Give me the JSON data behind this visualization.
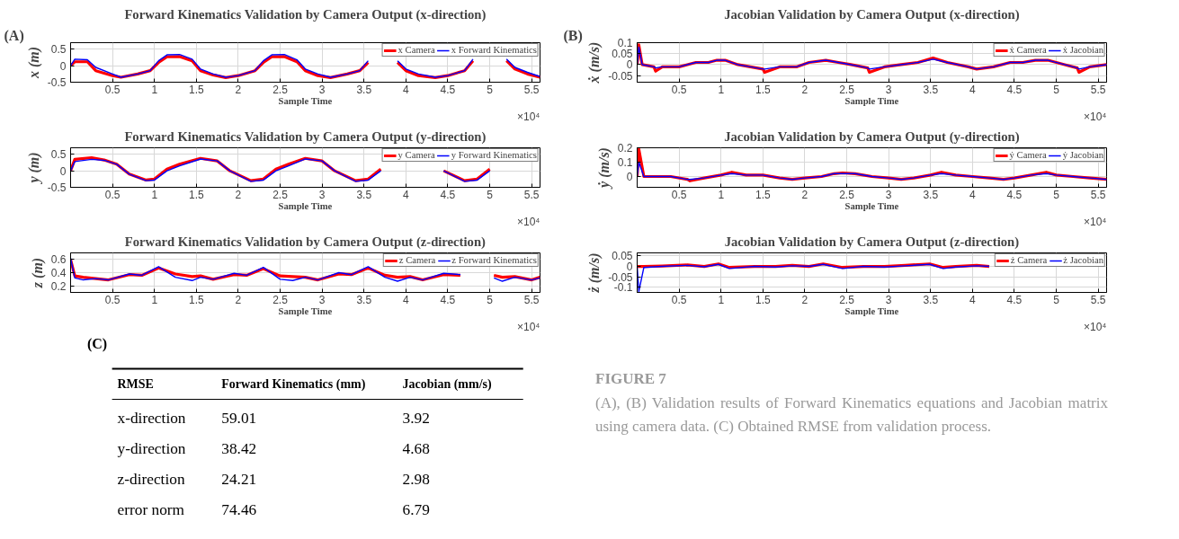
{
  "chart_data": [
    {
      "type": "line",
      "title": "Forward Kinematics Validation by Camera Output (x-direction)",
      "xlabel": "Sample Time",
      "ylabel": "x (m)",
      "xlim": [
        0,
        5.6
      ],
      "ylim": [
        -0.5,
        0.7
      ],
      "xticks": [
        0.5,
        1,
        1.5,
        2,
        2.5,
        3,
        3.5,
        4,
        4.5,
        5,
        5.5
      ],
      "yticks": [
        -0.5,
        0,
        0.5
      ],
      "grid": true,
      "legend": "top right",
      "annotations": [
        "×10⁴",
        "(A)"
      ],
      "x": [
        0,
        0.05,
        0.2,
        0.3,
        0.5,
        0.6,
        0.8,
        0.95,
        1.05,
        1.15,
        1.3,
        1.45,
        1.55,
        1.7,
        1.85,
        2,
        2.2,
        2.3,
        2.4,
        2.55,
        2.7,
        2.8,
        2.95,
        3.1,
        3.3,
        3.45,
        3.55,
        3.7,
        3.9,
        4,
        4.15,
        4.35,
        4.5,
        4.7,
        4.8,
        4.9,
        5.1,
        5.2,
        5.3,
        5.45,
        5.6
      ],
      "series": [
        {
          "name": "x Camera",
          "color": "#ff0000",
          "values": [
            0,
            0.12,
            0.12,
            -0.15,
            -0.3,
            -0.35,
            -0.25,
            -0.15,
            0.1,
            0.27,
            0.28,
            0.15,
            -0.15,
            -0.28,
            -0.36,
            -0.3,
            -0.15,
            0.1,
            0.27,
            0.28,
            0.12,
            -0.15,
            -0.3,
            -0.36,
            -0.25,
            -0.15,
            0.1,
            null,
            0.1,
            -0.15,
            -0.3,
            -0.36,
            -0.3,
            -0.15,
            0.15,
            null,
            null,
            0.15,
            -0.1,
            -0.25,
            -0.35
          ]
        },
        {
          "name": "x Forward Kinematics",
          "color": "#0000ff",
          "values": [
            0,
            0.2,
            0.18,
            -0.05,
            -0.25,
            -0.35,
            -0.25,
            -0.15,
            0.15,
            0.33,
            0.34,
            0.2,
            -0.1,
            -0.25,
            -0.35,
            -0.3,
            -0.15,
            0.15,
            0.33,
            0.34,
            0.18,
            -0.1,
            -0.25,
            -0.35,
            -0.25,
            -0.15,
            0.15,
            null,
            0.15,
            -0.1,
            -0.25,
            -0.35,
            -0.3,
            -0.15,
            0.2,
            null,
            null,
            0.2,
            -0.05,
            -0.2,
            -0.33
          ]
        }
      ]
    },
    {
      "type": "line",
      "title": "Forward Kinematics Validation by Camera Output (y-direction)",
      "xlabel": "Sample Time",
      "ylabel": "y (m)",
      "xlim": [
        0,
        5.6
      ],
      "ylim": [
        -0.5,
        0.7
      ],
      "xticks": [
        0.5,
        1,
        1.5,
        2,
        2.5,
        3,
        3.5,
        4,
        4.5,
        5,
        5.5
      ],
      "yticks": [
        -0.5,
        0,
        0.5
      ],
      "grid": true,
      "legend": "top right",
      "annotations": [
        "×10⁴"
      ],
      "x": [
        0,
        0.05,
        0.25,
        0.4,
        0.55,
        0.7,
        0.9,
        1,
        1.15,
        1.3,
        1.55,
        1.75,
        1.9,
        2.15,
        2.3,
        2.45,
        2.6,
        2.8,
        3,
        3.15,
        3.4,
        3.55,
        3.7,
        3.85,
        4.1,
        4.3,
        4.45,
        4.7,
        4.85,
        5
      ],
      "series": [
        {
          "name": "y Camera",
          "color": "#ff0000",
          "values": [
            0,
            0.35,
            0.4,
            0.33,
            0.2,
            -0.1,
            -0.28,
            -0.25,
            0.05,
            0.2,
            0.38,
            0.3,
            0.0,
            -0.3,
            -0.25,
            0.05,
            0.2,
            0.38,
            0.3,
            0.0,
            -0.3,
            -0.25,
            0.05,
            null,
            null,
            null,
            0.0,
            -0.3,
            -0.25,
            0.05
          ]
        },
        {
          "name": "y Forward Kinematics",
          "color": "#0000ff",
          "values": [
            0,
            0.28,
            0.35,
            0.32,
            0.2,
            -0.1,
            -0.3,
            -0.28,
            0.0,
            0.15,
            0.36,
            0.3,
            0.0,
            -0.32,
            -0.28,
            0.0,
            0.15,
            0.36,
            0.3,
            0.0,
            -0.32,
            -0.28,
            0.0,
            null,
            null,
            null,
            0.0,
            -0.32,
            -0.28,
            0.0
          ]
        }
      ]
    },
    {
      "type": "line",
      "title": "Forward Kinematics Validation by Camera Output (z-direction)",
      "xlabel": "Sample Time",
      "ylabel": "z (m)",
      "xlim": [
        0,
        5.6
      ],
      "ylim": [
        0.1,
        0.7
      ],
      "xticks": [
        0.5,
        1,
        1.5,
        2,
        2.5,
        3,
        3.5,
        4,
        4.5,
        5,
        5.5
      ],
      "yticks": [
        0.2,
        0.4,
        0.6
      ],
      "grid": true,
      "legend": "top right",
      "annotations": [
        "×10⁴"
      ],
      "x": [
        0,
        0.05,
        0.15,
        0.3,
        0.45,
        0.7,
        0.85,
        1.05,
        1.25,
        1.45,
        1.55,
        1.7,
        1.95,
        2.1,
        2.3,
        2.5,
        2.65,
        2.8,
        2.95,
        3.2,
        3.35,
        3.55,
        3.75,
        3.9,
        4.05,
        4.2,
        4.45,
        4.65,
        4.75,
        4.9,
        5.05,
        5.15,
        5.3,
        5.5,
        5.6
      ],
      "series": [
        {
          "name": "z Camera",
          "color": "#ff0000",
          "values": [
            0.6,
            0.35,
            0.33,
            0.31,
            0.29,
            0.37,
            0.36,
            0.47,
            0.38,
            0.34,
            0.35,
            0.3,
            0.37,
            0.36,
            0.46,
            0.35,
            0.34,
            0.33,
            0.29,
            0.38,
            0.37,
            0.47,
            0.36,
            0.33,
            0.34,
            0.29,
            0.37,
            0.36,
            null,
            null,
            0.36,
            0.33,
            0.34,
            0.29,
            0.33
          ]
        },
        {
          "name": "z Forward Kinematics",
          "color": "#0000ff",
          "values": [
            0.62,
            0.32,
            0.29,
            0.31,
            0.29,
            0.38,
            0.36,
            0.49,
            0.33,
            0.28,
            0.33,
            0.3,
            0.39,
            0.36,
            0.48,
            0.3,
            0.28,
            0.33,
            0.29,
            0.4,
            0.37,
            0.49,
            0.33,
            0.27,
            0.33,
            0.29,
            0.39,
            0.37,
            null,
            null,
            0.32,
            0.27,
            0.33,
            0.29,
            0.32
          ]
        }
      ]
    },
    {
      "type": "line",
      "title": "Jacobian Validation by Camera Output (x-direction)",
      "xlabel": "Sample Time",
      "ylabel": "ẋ (m/s)",
      "xlim": [
        0,
        5.6
      ],
      "ylim": [
        -0.08,
        0.1
      ],
      "xticks": [
        0.5,
        1,
        1.5,
        2,
        2.5,
        3,
        3.5,
        4,
        4.5,
        5,
        5.5
      ],
      "yticks": [
        -0.05,
        0,
        0.05,
        0.1
      ],
      "grid": true,
      "legend": "top right",
      "annotations": [
        "×10⁴",
        "(B)"
      ],
      "x": [
        0,
        0.02,
        0.06,
        0.2,
        0.22,
        0.3,
        0.5,
        0.7,
        0.85,
        0.95,
        1.05,
        1.2,
        1.35,
        1.5,
        1.52,
        1.7,
        1.9,
        2.05,
        2.25,
        2.4,
        2.55,
        2.75,
        2.77,
        2.95,
        3.15,
        3.35,
        3.53,
        3.7,
        3.95,
        4.05,
        4.25,
        4.45,
        4.6,
        4.75,
        4.9,
        5.1,
        5.25,
        5.27,
        5.4,
        5.6
      ],
      "series": [
        {
          "name": "ẋ Camera",
          "color": "#ff0000",
          "values": [
            0,
            0.09,
            0,
            -0.01,
            -0.03,
            -0.01,
            -0.01,
            0.01,
            0.01,
            0.02,
            0.02,
            0.0,
            -0.01,
            -0.02,
            -0.035,
            -0.01,
            -0.01,
            0.01,
            0.02,
            0.01,
            0.0,
            -0.015,
            -0.035,
            -0.01,
            0.0,
            0.01,
            0.03,
            0.01,
            -0.01,
            -0.02,
            -0.01,
            0.01,
            0.01,
            0.02,
            0.02,
            0.0,
            -0.015,
            -0.035,
            -0.01,
            0.0
          ]
        },
        {
          "name": "ẋ Jacobian",
          "color": "#0000ff",
          "values": [
            0,
            0.08,
            0,
            -0.01,
            -0.015,
            -0.01,
            -0.01,
            0.01,
            0.01,
            0.02,
            0.02,
            0.0,
            -0.01,
            -0.02,
            -0.02,
            -0.01,
            -0.01,
            0.01,
            0.02,
            0.01,
            0.0,
            -0.015,
            -0.02,
            -0.01,
            0.0,
            0.01,
            0.025,
            0.01,
            -0.01,
            -0.02,
            -0.01,
            0.01,
            0.01,
            0.02,
            0.02,
            0.0,
            -0.015,
            -0.02,
            -0.01,
            0.0
          ]
        }
      ]
    },
    {
      "type": "line",
      "title": "Jacobian Validation by Camera Output (y-direction)",
      "xlabel": "Sample Time",
      "ylabel": "ẏ (m/s)",
      "xlim": [
        0,
        5.6
      ],
      "ylim": [
        -0.075,
        0.2
      ],
      "xticks": [
        0.5,
        1,
        1.5,
        2,
        2.5,
        3,
        3.5,
        4,
        4.5,
        5,
        5.5
      ],
      "yticks": [
        0,
        0.1,
        0.2
      ],
      "grid": true,
      "legend": "top right",
      "annotations": [
        "×10⁴"
      ],
      "x": [
        0,
        0.02,
        0.08,
        0.2,
        0.4,
        0.6,
        0.63,
        0.8,
        1,
        1.13,
        1.3,
        1.5,
        1.7,
        1.85,
        2,
        2.2,
        2.35,
        2.45,
        2.6,
        2.8,
        3,
        3.15,
        3.3,
        3.5,
        3.63,
        3.8,
        4,
        4.2,
        4.37,
        4.5,
        4.7,
        4.88,
        5,
        5.2,
        5.4,
        5.6
      ],
      "series": [
        {
          "name": "ẏ Camera",
          "color": "#ff0000",
          "values": [
            0,
            0.19,
            0,
            0,
            0,
            -0.02,
            -0.03,
            -0.01,
            0.01,
            0.03,
            0.01,
            0.01,
            -0.01,
            -0.02,
            -0.01,
            0.0,
            0.02,
            0.025,
            0.02,
            0.0,
            -0.01,
            -0.02,
            -0.01,
            0.01,
            0.03,
            0.01,
            0.0,
            -0.01,
            -0.02,
            -0.01,
            0.01,
            0.03,
            0.01,
            0.0,
            -0.01,
            -0.02
          ]
        },
        {
          "name": "ẏ Jacobian",
          "color": "#0000ff",
          "values": [
            0,
            0.1,
            0,
            0,
            0,
            -0.02,
            -0.02,
            -0.01,
            0.01,
            0.02,
            0.01,
            0.01,
            -0.01,
            -0.02,
            -0.01,
            0.0,
            0.02,
            0.02,
            0.02,
            0.0,
            -0.01,
            -0.02,
            -0.01,
            0.01,
            0.02,
            0.01,
            0.0,
            -0.01,
            -0.02,
            -0.01,
            0.01,
            0.02,
            0.01,
            0.0,
            -0.01,
            -0.02
          ]
        }
      ]
    },
    {
      "type": "line",
      "title": "Jacobian Validation by Camera Output (z-direction)",
      "xlabel": "Sample Time",
      "ylabel": "ż (m/s)",
      "xlim": [
        0,
        5.6
      ],
      "ylim": [
        -0.125,
        0.065
      ],
      "xticks": [
        0.5,
        1,
        1.5,
        2,
        2.5,
        3,
        3.5,
        4,
        4.5,
        5,
        5.5
      ],
      "yticks": [
        -0.1,
        -0.05,
        0,
        0.05
      ],
      "grid": true,
      "legend": "top right",
      "annotations": [
        "×10⁴"
      ],
      "x": [
        0,
        0.02,
        0.08,
        0.3,
        0.6,
        0.8,
        0.97,
        1.1,
        1.4,
        1.65,
        1.85,
        2.05,
        2.22,
        2.45,
        2.7,
        2.95,
        3.2,
        3.49,
        3.65,
        3.8,
        4.05,
        4.2
      ],
      "series": [
        {
          "name": "ż Camera",
          "color": "#ff0000",
          "values": [
            0,
            0.0,
            0.0,
            0.002,
            0.007,
            0.0,
            0.012,
            -0.005,
            0.0,
            0.0,
            0.005,
            0.0,
            0.012,
            -0.005,
            0.0,
            0.0,
            0.005,
            0.012,
            -0.005,
            0.0,
            0.005,
            0.0
          ]
        },
        {
          "name": "ż Jacobian",
          "color": "#0000ff",
          "values": [
            0,
            -0.12,
            -0.005,
            0.0,
            0.005,
            -0.002,
            0.01,
            -0.01,
            0.0,
            -0.003,
            0.003,
            0.0,
            0.01,
            -0.01,
            0.0,
            -0.003,
            0.003,
            0.01,
            -0.01,
            -0.003,
            0.003,
            0.0
          ]
        }
      ]
    },
    {
      "type": "other",
      "ylabel": "RMSE",
      "categories": [
        "Forward Kinematics (mm)",
        "Jacobian (mm/s)"
      ],
      "y_categories": [
        "x-direction",
        "y-direction",
        "z-direction",
        "error norm"
      ],
      "cell_labels": [
        [
          "59.01",
          "3.92"
        ],
        [
          "38.42",
          "4.68"
        ],
        [
          "24.21",
          "2.98"
        ],
        [
          "74.46",
          "6.79"
        ]
      ],
      "annotations": [
        "(C)"
      ]
    },
    {
      "type": "other",
      "title": "FIGURE 7",
      "annotations": [
        "(A), (B) Validation results of Forward Kinematics equations and Jacobian matrix using camera data. (C) Obtained RMSE from validation process."
      ]
    }
  ]
}
